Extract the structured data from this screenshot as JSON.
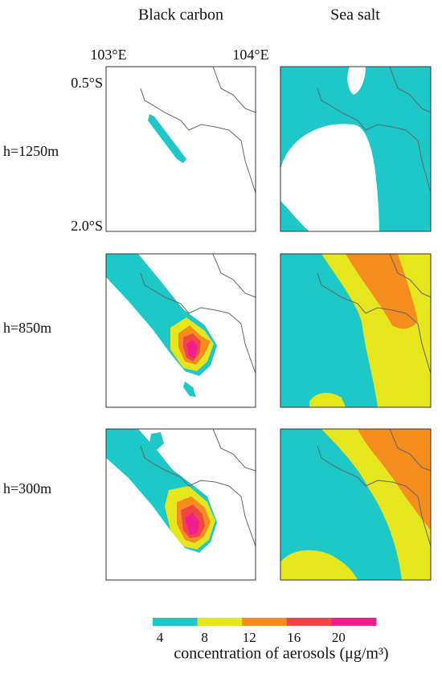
{
  "columns": [
    "Black carbon",
    "Sea salt"
  ],
  "longitude_labels": [
    "103°E",
    "104°E"
  ],
  "latitude_labels": [
    "0.5°S",
    "2.0°S"
  ],
  "rows": [
    "h=1250m",
    "h=850m",
    "h=300m"
  ],
  "colorbar": {
    "ticks": [
      "4",
      "8",
      "12",
      "16",
      "20"
    ],
    "colors": [
      "#1ec8c8",
      "#e6e61e",
      "#f58c1e",
      "#f04646",
      "#f01e8c"
    ],
    "label": "concentration of aerosols (μg/m³)"
  }
}
